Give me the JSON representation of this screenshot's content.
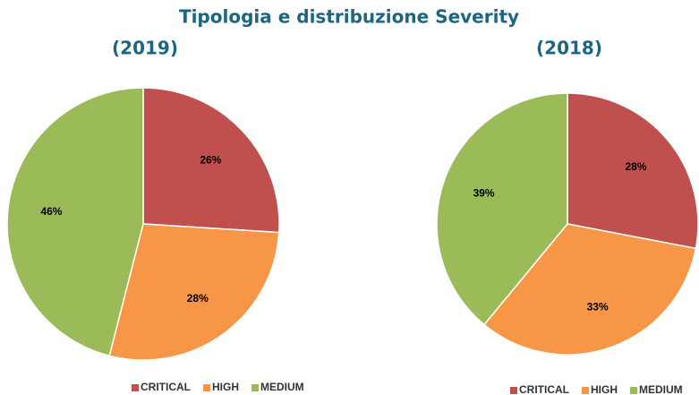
{
  "title": "Tipologia e distribuzione Severity",
  "chart_data": [
    {
      "type": "pie",
      "title": "(2019)",
      "categories": [
        "CRITICAL",
        "HIGH",
        "MEDIUM"
      ],
      "values": [
        26,
        28,
        46
      ],
      "value_labels": [
        "26%",
        "28%",
        "46%"
      ],
      "colors": [
        "#c0504d",
        "#f79646",
        "#9bbb59"
      ]
    },
    {
      "type": "pie",
      "title": "(2018)",
      "categories": [
        "CRITICAL",
        "HIGH",
        "MEDIUM"
      ],
      "values": [
        28,
        33,
        39
      ],
      "value_labels": [
        "28%",
        "33%",
        "39%"
      ],
      "colors": [
        "#c0504d",
        "#f79646",
        "#9bbb59"
      ]
    }
  ]
}
